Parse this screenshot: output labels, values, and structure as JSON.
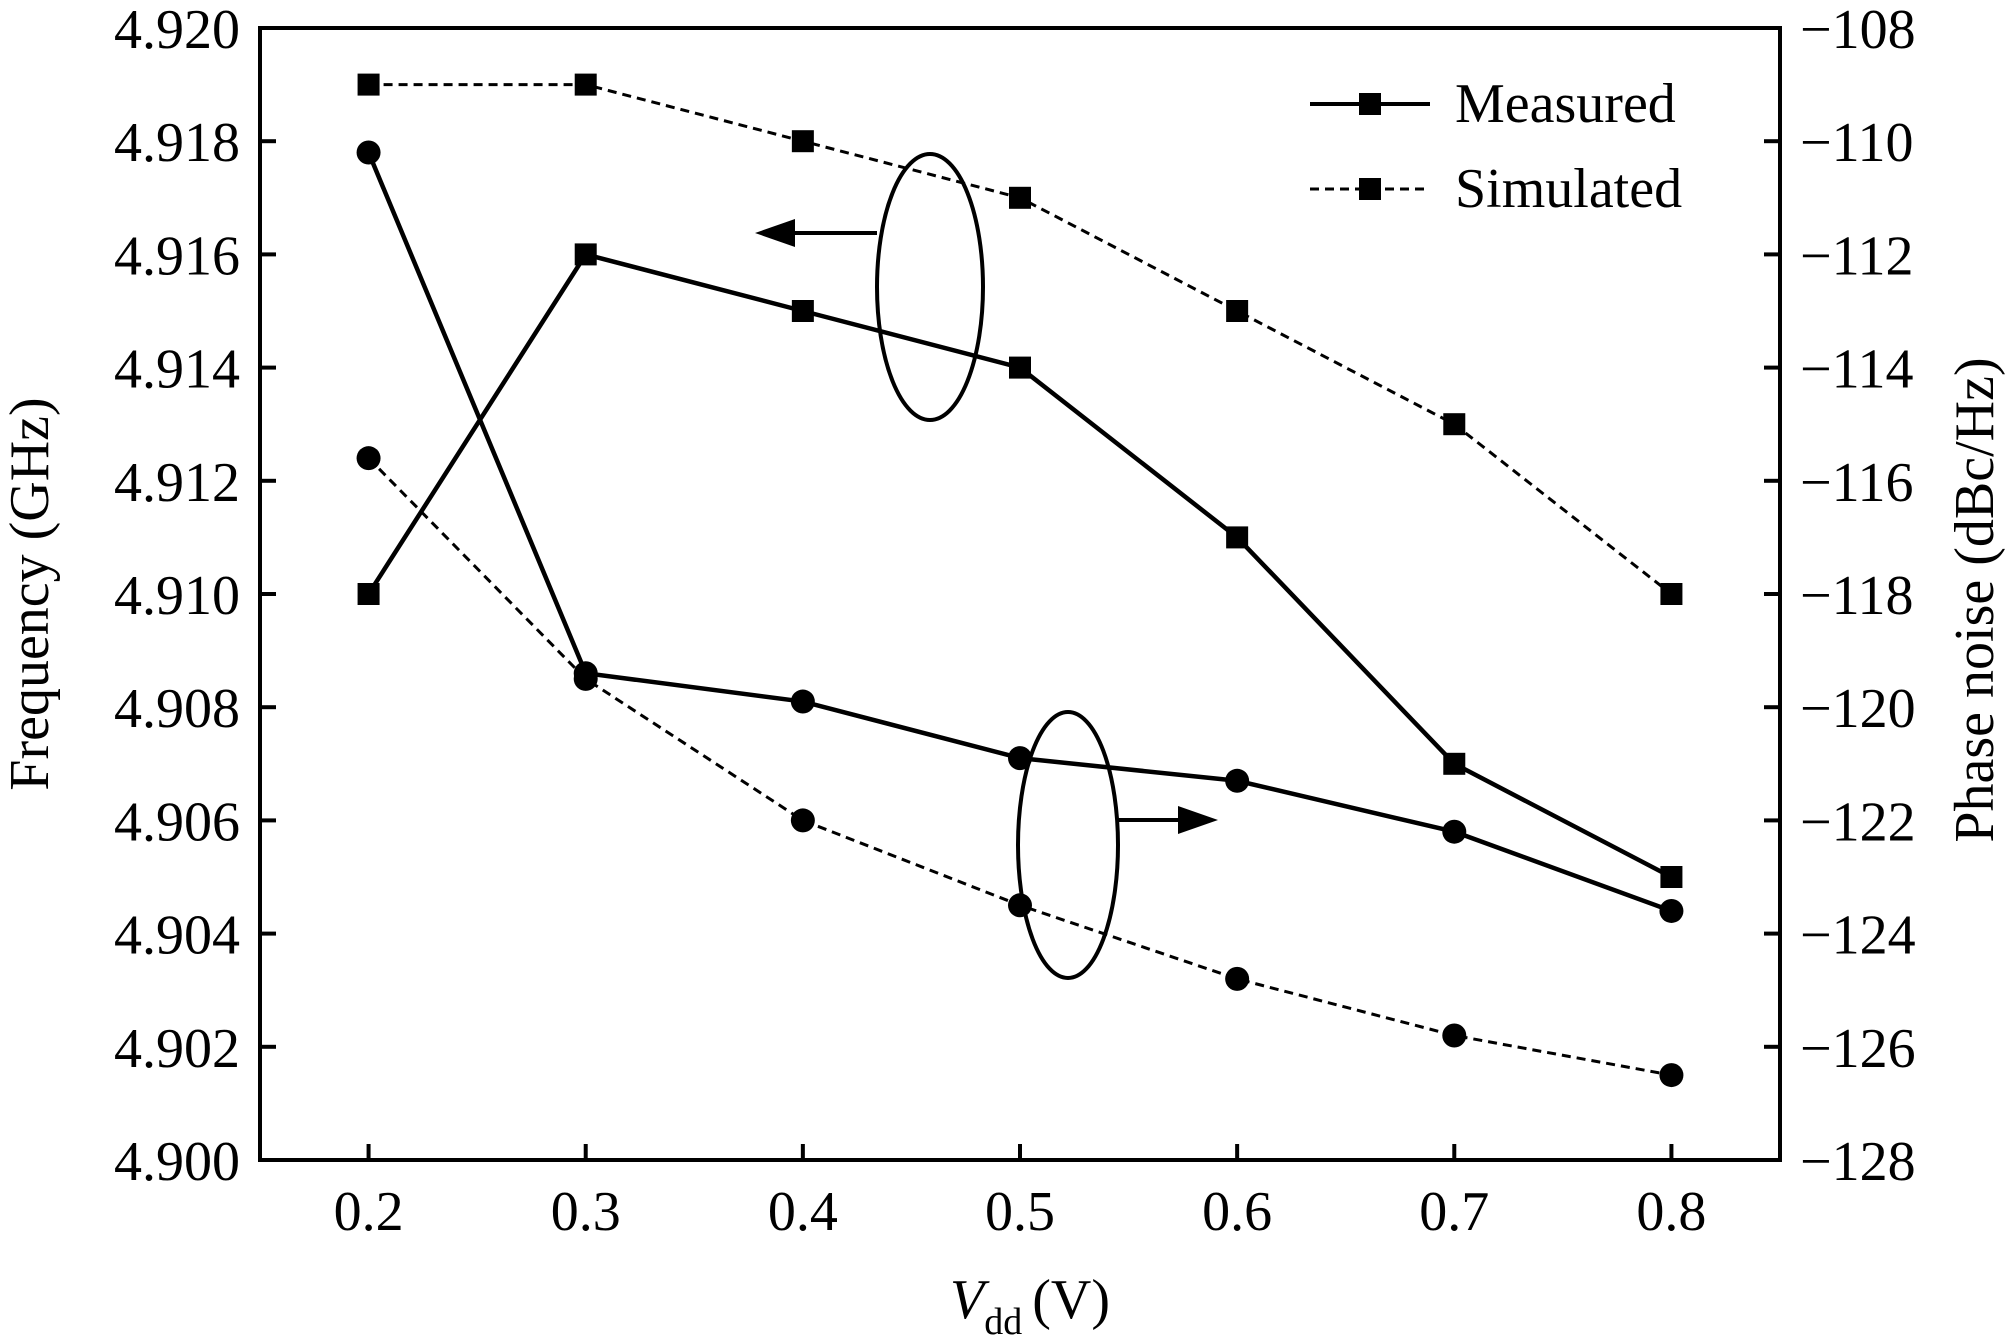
{
  "chart_data": {
    "type": "line",
    "x_label_main": "V",
    "x_label_sub": "dd",
    "x_label_unit": "(V)",
    "y_left_label": "Frequency (GHz)",
    "y_right_label": "Phase noise (dBc/Hz)",
    "x_ticks": [
      "0.2",
      "0.3",
      "0.4",
      "0.5",
      "0.6",
      "0.7",
      "0.8"
    ],
    "x_range": [
      0.15,
      0.85
    ],
    "y_left_ticks": [
      "4.900",
      "4.902",
      "4.904",
      "4.906",
      "4.908",
      "4.910",
      "4.912",
      "4.914",
      "4.916",
      "4.918",
      "4.920"
    ],
    "y_left_range": [
      4.9,
      4.92
    ],
    "y_right_ticks": [
      "−128",
      "−126",
      "−124",
      "−122",
      "−120",
      "−118",
      "−116",
      "−114",
      "−112",
      "−110",
      "−108"
    ],
    "y_right_range": [
      -128,
      -108
    ],
    "legend": [
      {
        "label": "Measured",
        "style": "solid"
      },
      {
        "label": "Simulated",
        "style": "dashed"
      }
    ],
    "legend_position": "top-right",
    "series": [
      {
        "axis": "left",
        "style": "solid",
        "marker": "square",
        "x": [
          0.2,
          0.3,
          0.4,
          0.5,
          0.6,
          0.7,
          0.8
        ],
        "y": [
          4.91,
          4.916,
          4.915,
          4.914,
          4.911,
          4.907,
          4.905
        ]
      },
      {
        "axis": "left",
        "style": "dashed",
        "marker": "square",
        "x": [
          0.2,
          0.3,
          0.4,
          0.5,
          0.6,
          0.7,
          0.8
        ],
        "y": [
          4.919,
          4.919,
          4.918,
          4.917,
          4.915,
          4.913,
          4.91
        ]
      },
      {
        "axis": "right",
        "style": "solid",
        "marker": "circle",
        "x": [
          0.2,
          0.3,
          0.4,
          0.5,
          0.6,
          0.7,
          0.8
        ],
        "y": [
          -110.2,
          -119.4,
          -119.9,
          -120.9,
          -121.3,
          -122.2,
          -123.6
        ]
      },
      {
        "axis": "right",
        "style": "dashed",
        "marker": "circle",
        "x": [
          0.2,
          0.3,
          0.4,
          0.5,
          0.6,
          0.7,
          0.8
        ],
        "y": [
          -115.6,
          -119.5,
          -122.0,
          -123.5,
          -124.8,
          -125.8,
          -126.5
        ]
      }
    ],
    "colors": {
      "line": "#000000",
      "background": "#ffffff"
    }
  }
}
